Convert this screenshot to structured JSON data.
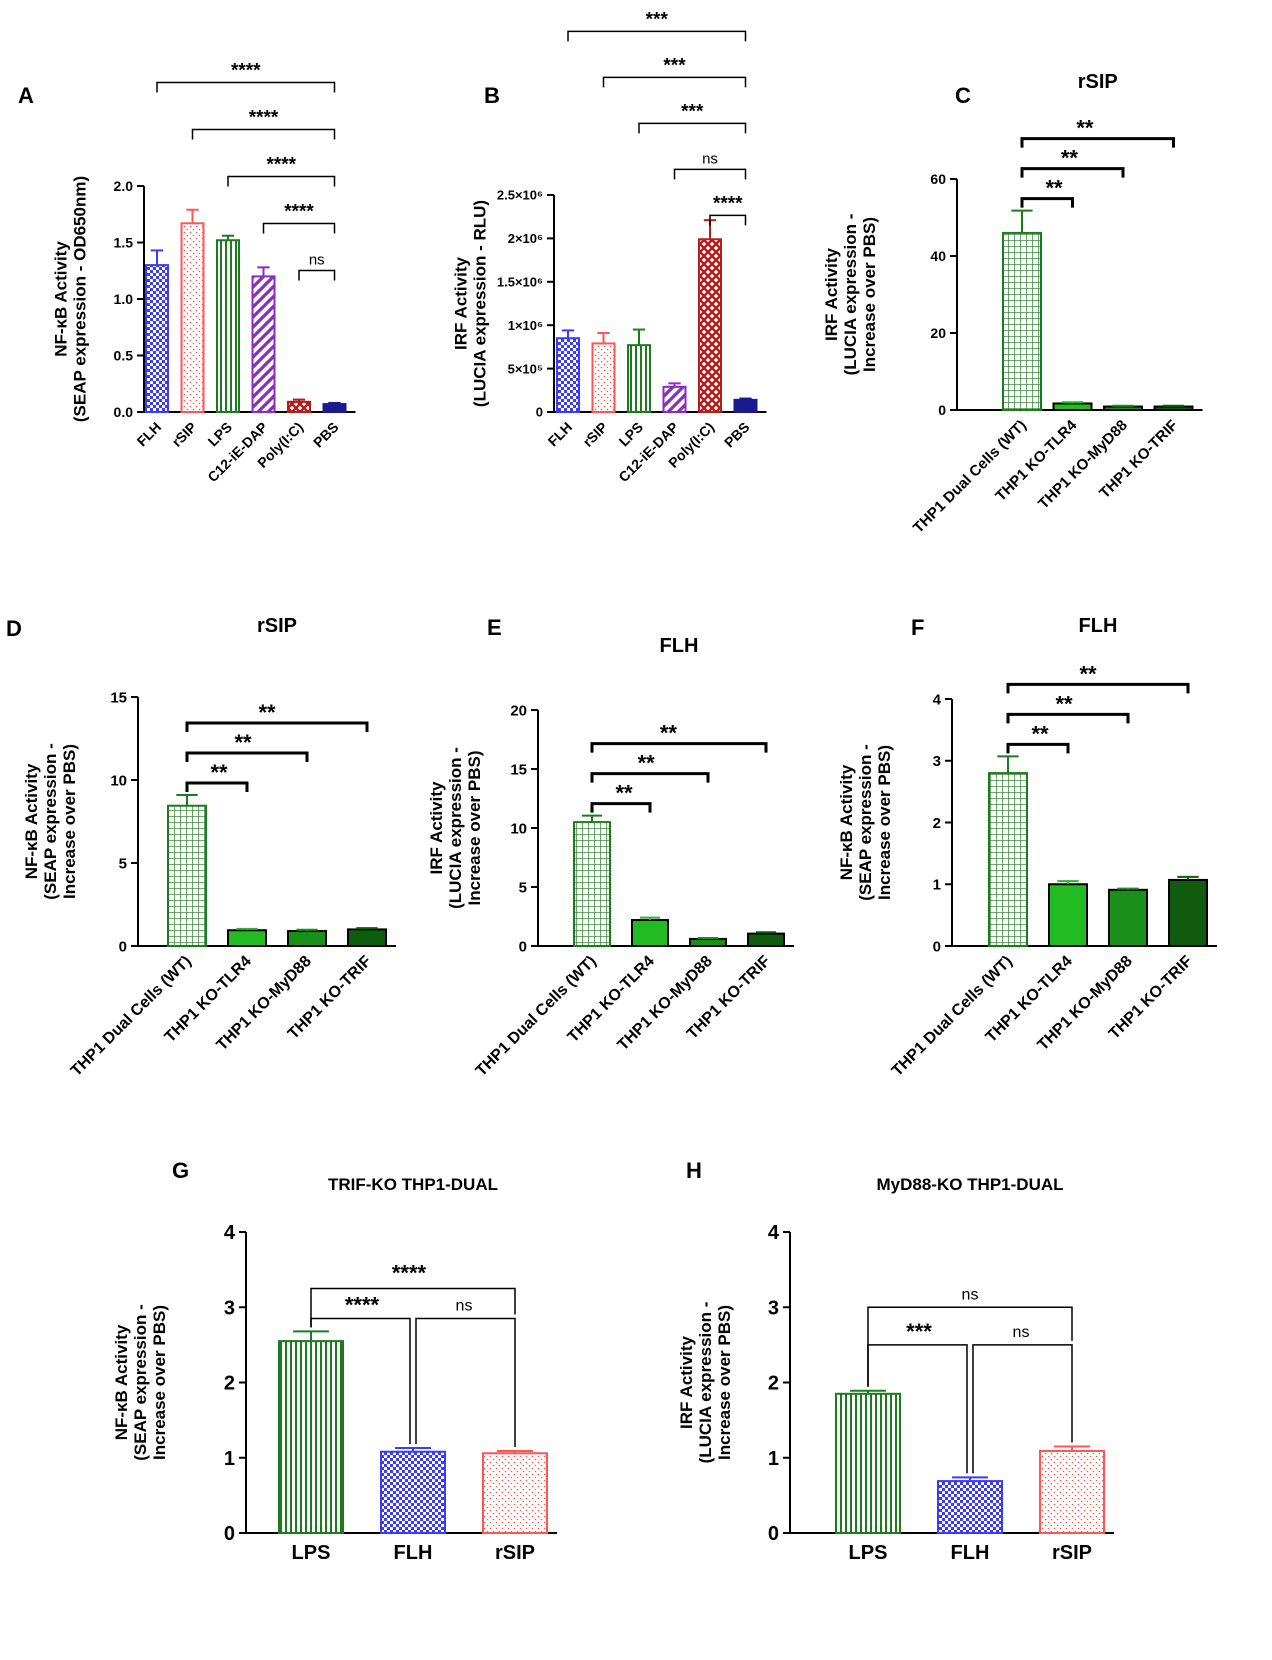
{
  "colors": {
    "flh": "#3b3bff",
    "rsip": "#ff5555",
    "lps": "#1e7a1e",
    "c12": "#8a2bc2",
    "polyic": "#b21e1e",
    "pbs": "#1a1a8c",
    "wt": "#1e7a1e",
    "tlr4": "#22bb22",
    "myd88": "#1a8f1a",
    "trif": "#0f5c0f"
  },
  "chart_data": [
    {
      "panel": "A",
      "type": "bar",
      "title": "",
      "ylabel": [
        "NF-κB Activity",
        "(SEAP expression - OD650nm)"
      ],
      "ylabel_sub": "650nm",
      "ylim": [
        0,
        2.0
      ],
      "yticks": [
        "0.0",
        "0.5",
        "1.0",
        "1.5",
        "2.0"
      ],
      "yticks_v": [
        0,
        0.5,
        1.0,
        1.5,
        2.0
      ],
      "categories": [
        "FLH",
        "rSIP",
        "LPS",
        "C12-iE-DAP",
        "Poly(I:C)",
        "PBS"
      ],
      "values": [
        1.3,
        1.67,
        1.52,
        1.2,
        0.09,
        0.07
      ],
      "errors": [
        0.13,
        0.12,
        0.04,
        0.08,
        0.02,
        0.01
      ],
      "fills": [
        "checker",
        "dots",
        "vlines",
        "diag",
        "cross",
        "solid"
      ],
      "colorKeys": [
        "flh",
        "rsip",
        "lps",
        "c12",
        "polyic",
        "pbs"
      ],
      "comparisons": [
        {
          "from": 0,
          "to": 5,
          "label": "****"
        },
        {
          "from": 1,
          "to": 5,
          "label": "****"
        },
        {
          "from": 2,
          "to": 5,
          "label": "****"
        },
        {
          "from": 3,
          "to": 5,
          "label": "****"
        },
        {
          "from": 4,
          "to": 5,
          "label": "ns"
        }
      ]
    },
    {
      "panel": "B",
      "type": "bar",
      "title": "",
      "ylabel": [
        "IRF Activity",
        "(LUCIA expression - RLU)"
      ],
      "ylim": [
        0,
        2500000
      ],
      "yticks": [
        "0",
        "5×10⁵",
        "1×10⁶",
        "1.5×10⁶",
        "2×10⁶",
        "2.5×10⁶"
      ],
      "yticks_v": [
        0,
        500000,
        1000000,
        1500000,
        2000000,
        2500000
      ],
      "categories": [
        "FLH",
        "rSIP",
        "LPS",
        "C12-iE-DAP",
        "Poly(I:C)",
        "PBS"
      ],
      "values": [
        850000,
        790000,
        770000,
        290000,
        1990000,
        140000
      ],
      "errors": [
        90000,
        120000,
        180000,
        40000,
        220000,
        15000
      ],
      "fills": [
        "checker",
        "dots",
        "vlines",
        "diag",
        "cross",
        "solid"
      ],
      "colorKeys": [
        "flh",
        "rsip",
        "lps",
        "c12",
        "polyic",
        "pbs"
      ],
      "comparisons": [
        {
          "from": 0,
          "to": 5,
          "label": "***"
        },
        {
          "from": 1,
          "to": 5,
          "label": "***"
        },
        {
          "from": 2,
          "to": 5,
          "label": "***"
        },
        {
          "from": 3,
          "to": 5,
          "label": "ns"
        },
        {
          "from": 4,
          "to": 5,
          "label": "****"
        }
      ]
    },
    {
      "panel": "C",
      "type": "bar",
      "title": "rSIP",
      "ylabel": [
        "IRF Activity",
        "(LUCIA expression -",
        "Increase over PBS)"
      ],
      "ylim": [
        0,
        60
      ],
      "yticks": [
        "0",
        "20",
        "40",
        "60"
      ],
      "yticks_v": [
        0,
        20,
        40,
        60
      ],
      "categories": [
        "THP1 Dual Cells (WT)",
        "THP1 KO-TLR4",
        "THP1 KO-MyD88",
        "THP1 KO-TRIF"
      ],
      "values": [
        46.0,
        1.7,
        0.9,
        0.9
      ],
      "errors": [
        5.8,
        0.3,
        0.2,
        0.2
      ],
      "fills": [
        "grid",
        "solid",
        "solid",
        "solid"
      ],
      "colorKeys": [
        "wt",
        "tlr4",
        "myd88",
        "trif"
      ],
      "comparisons": [
        {
          "from": 0,
          "to": 1,
          "label": "**"
        },
        {
          "from": 0,
          "to": 2,
          "label": "**"
        },
        {
          "from": 0,
          "to": 3,
          "label": "**"
        }
      ]
    },
    {
      "panel": "D",
      "type": "bar",
      "title": "rSIP",
      "ylabel": [
        "NF-κB Activity",
        "(SEAP expression -",
        "Increase over PBS)"
      ],
      "ylim": [
        0,
        15
      ],
      "yticks": [
        "0",
        "5",
        "10",
        "15"
      ],
      "yticks_v": [
        0,
        5,
        10,
        15
      ],
      "categories": [
        "THP1 Dual Cells (WT)",
        "THP1 KO-TLR4",
        "THP1 KO-MyD88",
        "THP1 KO-TRIF"
      ],
      "values": [
        8.45,
        0.95,
        0.9,
        1.0
      ],
      "errors": [
        0.65,
        0.08,
        0.08,
        0.08
      ],
      "fills": [
        "grid",
        "solid",
        "solid",
        "solid"
      ],
      "colorKeys": [
        "wt",
        "tlr4",
        "myd88",
        "trif"
      ],
      "comparisons": [
        {
          "from": 0,
          "to": 1,
          "label": "**"
        },
        {
          "from": 0,
          "to": 2,
          "label": "**"
        },
        {
          "from": 0,
          "to": 3,
          "label": "**"
        }
      ]
    },
    {
      "panel": "E",
      "type": "bar",
      "title": "FLH",
      "ylabel": [
        "IRF Activity",
        "(LUCIA expression -",
        "Increase over PBS)"
      ],
      "ylim": [
        0,
        20
      ],
      "yticks": [
        "0",
        "5",
        "10",
        "15",
        "20"
      ],
      "yticks_v": [
        0,
        5,
        10,
        15,
        20
      ],
      "categories": [
        "THP1 Dual Cells (WT)",
        "THP1 KO-TLR4",
        "THP1 KO-MyD88",
        "THP1 KO-TRIF"
      ],
      "values": [
        10.5,
        2.2,
        0.6,
        1.05
      ],
      "errors": [
        0.55,
        0.2,
        0.08,
        0.12
      ],
      "fills": [
        "grid",
        "solid",
        "solid",
        "solid"
      ],
      "colorKeys": [
        "wt",
        "tlr4",
        "myd88",
        "trif"
      ],
      "comparisons": [
        {
          "from": 0,
          "to": 1,
          "label": "**"
        },
        {
          "from": 0,
          "to": 2,
          "label": "**"
        },
        {
          "from": 0,
          "to": 3,
          "label": "**"
        }
      ]
    },
    {
      "panel": "F",
      "type": "bar",
      "title": "FLH",
      "ylabel": [
        "NF-κB Activity",
        "(SEAP expression -",
        "Increase over PBS)"
      ],
      "ylim": [
        0,
        4
      ],
      "yticks": [
        "0",
        "1",
        "2",
        "3",
        "4"
      ],
      "yticks_v": [
        0,
        1,
        2,
        3,
        4
      ],
      "categories": [
        "THP1 Dual Cells (WT)",
        "THP1 KO-TLR4",
        "THP1 KO-MyD88",
        "THP1 KO-TRIF"
      ],
      "values": [
        2.8,
        1.0,
        0.91,
        1.07
      ],
      "errors": [
        0.27,
        0.05,
        0.02,
        0.05
      ],
      "fills": [
        "grid",
        "solid",
        "solid",
        "solid"
      ],
      "colorKeys": [
        "wt",
        "tlr4",
        "myd88",
        "trif"
      ],
      "comparisons": [
        {
          "from": 0,
          "to": 1,
          "label": "**"
        },
        {
          "from": 0,
          "to": 2,
          "label": "**"
        },
        {
          "from": 0,
          "to": 3,
          "label": "**"
        }
      ]
    },
    {
      "panel": "G",
      "type": "bar",
      "title": "TRIF-KO THP1-DUAL",
      "ylabel": [
        "NF-κB Activity",
        "(SEAP expression -",
        "Increase over PBS)"
      ],
      "ylim": [
        0,
        4
      ],
      "yticks": [
        "0",
        "1",
        "2",
        "3",
        "4"
      ],
      "yticks_v": [
        0,
        1,
        2,
        3,
        4
      ],
      "categories": [
        "LPS",
        "FLH",
        "rSIP"
      ],
      "values": [
        2.55,
        1.08,
        1.06
      ],
      "errors": [
        0.13,
        0.05,
        0.03
      ],
      "fills": [
        "vlines",
        "checker",
        "dots"
      ],
      "colorKeys": [
        "lps",
        "flh",
        "rsip"
      ],
      "comparisons": [
        {
          "from": 0,
          "to": 2,
          "label": "****"
        },
        {
          "from": 0,
          "to": 1,
          "label": "****"
        },
        {
          "from": 1,
          "to": 2,
          "label": "ns"
        }
      ]
    },
    {
      "panel": "H",
      "type": "bar",
      "title": "MyD88-KO THP1-DUAL",
      "ylabel": [
        "IRF Activity",
        "(LUCIA expression -",
        "Increase over PBS)"
      ],
      "ylim": [
        0,
        4
      ],
      "yticks": [
        "0",
        "1",
        "2",
        "3",
        "4"
      ],
      "yticks_v": [
        0,
        1,
        2,
        3,
        4
      ],
      "categories": [
        "LPS",
        "FLH",
        "rSIP"
      ],
      "values": [
        1.85,
        0.69,
        1.09
      ],
      "errors": [
        0.04,
        0.05,
        0.06
      ],
      "fills": [
        "vlines",
        "checker",
        "dots"
      ],
      "colorKeys": [
        "lps",
        "flh",
        "rsip"
      ],
      "comparisons": [
        {
          "from": 0,
          "to": 2,
          "label": "ns"
        },
        {
          "from": 0,
          "to": 1,
          "label": "***"
        },
        {
          "from": 1,
          "to": 2,
          "label": "ns"
        }
      ]
    }
  ]
}
